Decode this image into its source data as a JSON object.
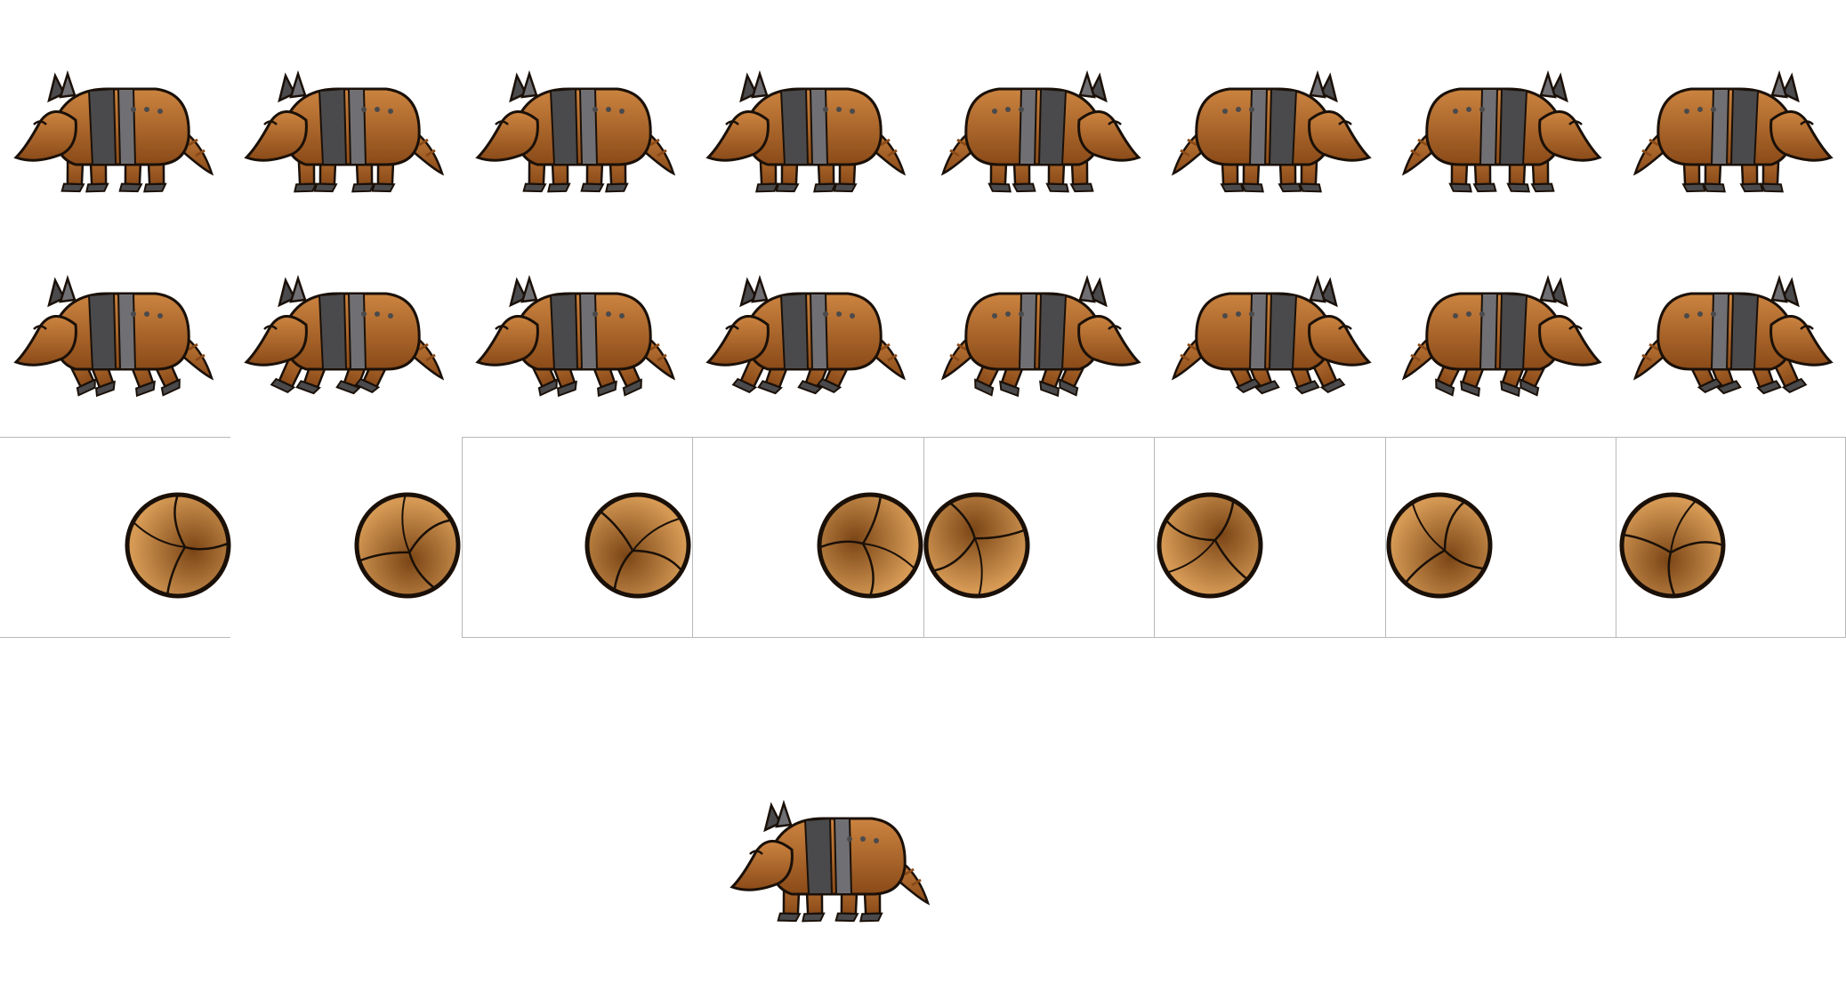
{
  "sprite_sheet": {
    "columns": 8,
    "colors": {
      "body": "#b0682a",
      "body_light": "#cc8440",
      "body_dark": "#8a4a18",
      "plates": "#4a4a4c",
      "plates_light": "#707074",
      "outline": "#1a1008",
      "ball_light": "#d69a55",
      "ball_dark": "#7a4516"
    },
    "rows": [
      {
        "name": "walk",
        "frames": 8,
        "left_facing": 4
      },
      {
        "name": "run",
        "frames": 8,
        "left_facing": 4
      },
      {
        "name": "roll",
        "frames": 8
      }
    ],
    "single": {
      "name": "idle",
      "facing": "left"
    }
  }
}
